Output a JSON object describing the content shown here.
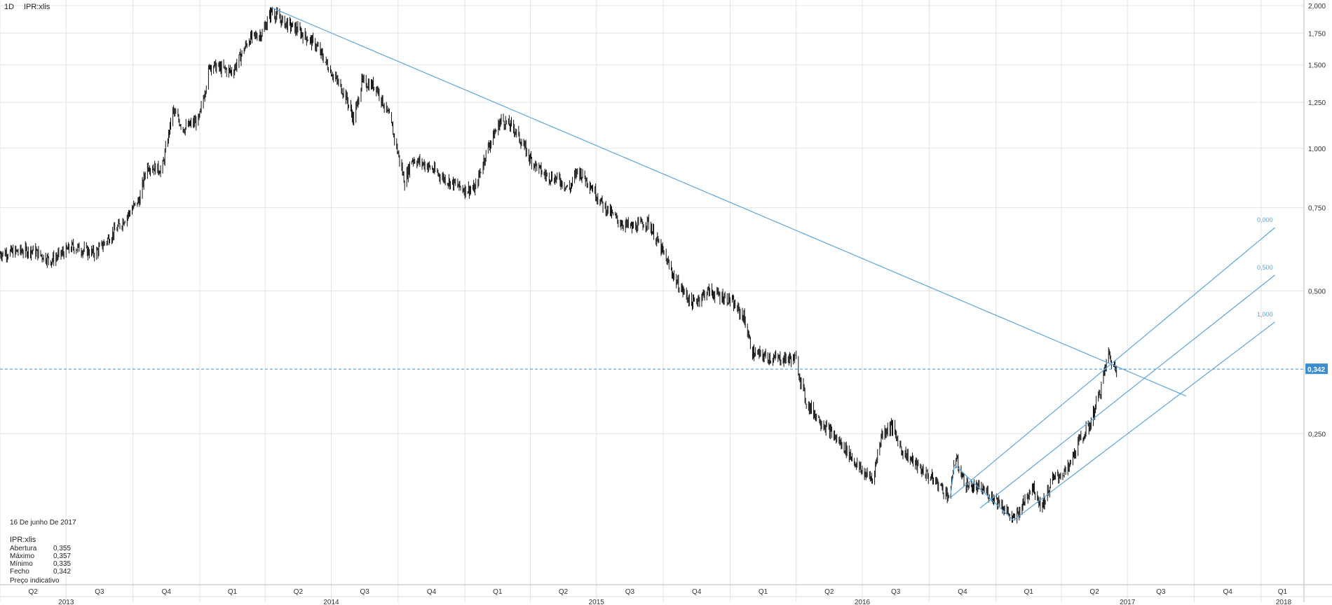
{
  "header": {
    "interval": "1D",
    "symbol": "IPR:xlis"
  },
  "info_panel": {
    "date": "16 De junho De 2017",
    "symbol": "IPR:xlis",
    "rows": [
      {
        "label": "Abertura",
        "value": "0,355"
      },
      {
        "label": "Máximo",
        "value": "0,357"
      },
      {
        "label": "Mínimo",
        "value": "0,335"
      },
      {
        "label": "Fecho",
        "value": "0,342"
      }
    ],
    "note": "Preço indicativo"
  },
  "colors": {
    "line": "#5aa6dd",
    "price": "#111111",
    "grid": "#e3e3e3",
    "price_label_bg": "#3b8fd0"
  },
  "chart_data": {
    "type": "candlestick",
    "y_scale": "log",
    "ylim": [
      0.12,
      2.0
    ],
    "y_ticks": [
      {
        "v": 2.0,
        "label": "2,000"
      },
      {
        "v": 1.75,
        "label": "1,750"
      },
      {
        "v": 1.5,
        "label": "1,500"
      },
      {
        "v": 1.25,
        "label": "1,250"
      },
      {
        "v": 1.0,
        "label": "1,000"
      },
      {
        "v": 0.75,
        "label": "0,750"
      },
      {
        "v": 0.5,
        "label": "0,500"
      },
      {
        "v": 0.25,
        "label": "0,250"
      }
    ],
    "xlim": [
      "2013-04-01",
      "2018-03-01"
    ],
    "quarters": [
      {
        "date": "2013-04-01",
        "label": "Q2"
      },
      {
        "date": "2013-07-01",
        "label": "Q3"
      },
      {
        "date": "2013-10-01",
        "label": "Q4"
      },
      {
        "date": "2014-01-01",
        "label": "Q1"
      },
      {
        "date": "2014-04-01",
        "label": "Q2"
      },
      {
        "date": "2014-07-01",
        "label": "Q3"
      },
      {
        "date": "2014-10-01",
        "label": "Q4"
      },
      {
        "date": "2015-01-01",
        "label": "Q1"
      },
      {
        "date": "2015-04-01",
        "label": "Q2"
      },
      {
        "date": "2015-07-01",
        "label": "Q3"
      },
      {
        "date": "2015-10-01",
        "label": "Q4"
      },
      {
        "date": "2016-01-01",
        "label": "Q1"
      },
      {
        "date": "2016-04-01",
        "label": "Q2"
      },
      {
        "date": "2016-07-01",
        "label": "Q3"
      },
      {
        "date": "2016-10-01",
        "label": "Q4"
      },
      {
        "date": "2017-01-01",
        "label": "Q1"
      },
      {
        "date": "2017-04-01",
        "label": "Q2"
      },
      {
        "date": "2017-07-01",
        "label": "Q3"
      },
      {
        "date": "2017-10-01",
        "label": "Q4"
      },
      {
        "date": "2018-01-01",
        "label": "Q1"
      }
    ],
    "years": [
      {
        "date": "2013-07-01",
        "label": "2013"
      },
      {
        "date": "2014-07-01",
        "label": "2014"
      },
      {
        "date": "2015-07-01",
        "label": "2015"
      },
      {
        "date": "2016-07-01",
        "label": "2016"
      },
      {
        "date": "2017-07-01",
        "label": "2017"
      },
      {
        "date": "2018-02-01",
        "label": "2018"
      }
    ],
    "price_path": [
      [
        "2013-04-01",
        0.6
      ],
      [
        "2013-05-15",
        0.61
      ],
      [
        "2013-06-10",
        0.58
      ],
      [
        "2013-07-10",
        0.62
      ],
      [
        "2013-08-10",
        0.6
      ],
      [
        "2013-09-10",
        0.68
      ],
      [
        "2013-10-10",
        0.78
      ],
      [
        "2013-10-20",
        0.92
      ],
      [
        "2013-11-10",
        0.9
      ],
      [
        "2013-11-25",
        1.2
      ],
      [
        "2013-12-10",
        1.1
      ],
      [
        "2013-12-31",
        1.15
      ],
      [
        "2014-01-15",
        1.5
      ],
      [
        "2014-02-15",
        1.45
      ],
      [
        "2014-03-10",
        1.7
      ],
      [
        "2014-03-28",
        1.75
      ],
      [
        "2014-04-10",
        1.95
      ],
      [
        "2014-04-25",
        1.85
      ],
      [
        "2014-05-15",
        1.78
      ],
      [
        "2014-06-10",
        1.65
      ],
      [
        "2014-07-01",
        1.45
      ],
      [
        "2014-07-20",
        1.3
      ],
      [
        "2014-08-01",
        1.15
      ],
      [
        "2014-08-12",
        1.38
      ],
      [
        "2014-09-01",
        1.35
      ],
      [
        "2014-09-20",
        1.15
      ],
      [
        "2014-10-10",
        0.85
      ],
      [
        "2014-10-20",
        0.95
      ],
      [
        "2014-11-10",
        0.92
      ],
      [
        "2014-12-05",
        0.86
      ],
      [
        "2014-12-31",
        0.82
      ],
      [
        "2015-01-15",
        0.82
      ],
      [
        "2015-02-01",
        1.0
      ],
      [
        "2015-02-20",
        1.15
      ],
      [
        "2015-03-10",
        1.1
      ],
      [
        "2015-04-01",
        0.95
      ],
      [
        "2015-04-20",
        0.88
      ],
      [
        "2015-05-10",
        0.86
      ],
      [
        "2015-05-25",
        0.82
      ],
      [
        "2015-06-05",
        0.9
      ],
      [
        "2015-06-20",
        0.85
      ],
      [
        "2015-07-10",
        0.76
      ],
      [
        "2015-08-01",
        0.7
      ],
      [
        "2015-08-20",
        0.68
      ],
      [
        "2015-09-10",
        0.7
      ],
      [
        "2015-10-01",
        0.6
      ],
      [
        "2015-10-20",
        0.52
      ],
      [
        "2015-11-10",
        0.47
      ],
      [
        "2015-12-01",
        0.5
      ],
      [
        "2015-12-31",
        0.48
      ],
      [
        "2016-01-20",
        0.44
      ],
      [
        "2016-02-01",
        0.37
      ],
      [
        "2016-03-01",
        0.36
      ],
      [
        "2016-03-31",
        0.36
      ],
      [
        "2016-04-15",
        0.29
      ],
      [
        "2016-05-10",
        0.26
      ],
      [
        "2016-06-10",
        0.23
      ],
      [
        "2016-06-28",
        0.21
      ],
      [
        "2016-07-15",
        0.2
      ],
      [
        "2016-07-28",
        0.25
      ],
      [
        "2016-08-10",
        0.26
      ],
      [
        "2016-08-25",
        0.23
      ],
      [
        "2016-09-20",
        0.21
      ],
      [
        "2016-10-15",
        0.195
      ],
      [
        "2016-10-30",
        0.183
      ],
      [
        "2016-11-05",
        0.225
      ],
      [
        "2016-11-20",
        0.195
      ],
      [
        "2016-12-15",
        0.19
      ],
      [
        "2017-01-05",
        0.18
      ],
      [
        "2017-01-25",
        0.164
      ],
      [
        "2017-02-05",
        0.175
      ],
      [
        "2017-02-20",
        0.195
      ],
      [
        "2017-03-05",
        0.175
      ],
      [
        "2017-03-20",
        0.2
      ],
      [
        "2017-04-10",
        0.21
      ],
      [
        "2017-04-25",
        0.24
      ],
      [
        "2017-05-10",
        0.26
      ],
      [
        "2017-05-25",
        0.31
      ],
      [
        "2017-06-05",
        0.37
      ],
      [
        "2017-06-10",
        0.35
      ],
      [
        "2017-06-16",
        0.342
      ]
    ],
    "last_price": {
      "value": 0.342,
      "label": "0,342"
    },
    "trendline": {
      "from": [
        "2014-04-10",
        1.98
      ],
      "to": [
        "2017-09-20",
        0.3
      ]
    },
    "fibonacci_channel": {
      "anchor": [
        "2016-11-05",
        0.215
      ],
      "levels": [
        {
          "label": "0,000",
          "from": [
            "2016-10-30",
            0.183
          ],
          "to": [
            "2018-01-20",
            0.68
          ]
        },
        {
          "label": "0,500",
          "from": [
            "2016-12-10",
            0.174
          ],
          "to": [
            "2018-01-20",
            0.54
          ]
        },
        {
          "label": "1,000",
          "from": [
            "2017-01-25",
            0.164
          ],
          "to": [
            "2018-01-20",
            0.43
          ]
        }
      ]
    }
  }
}
